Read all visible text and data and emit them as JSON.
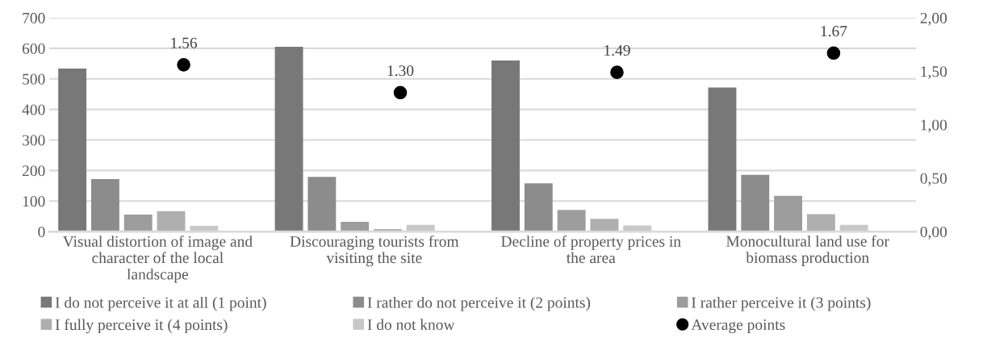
{
  "chart_data": {
    "type": "bar",
    "categories": [
      "Visual distortion of image and character of the local landscape",
      "Discouraging tourists from visiting the site",
      "Decline of property prices in the area",
      "Monocultural land use for biomass production"
    ],
    "series": [
      {
        "name": "I do not perceive it at all (1 point)",
        "color": "#787878",
        "values": [
          534,
          605,
          560,
          472
        ]
      },
      {
        "name": "I rather do not perceive it (2 points)",
        "color": "#8c8c8c",
        "values": [
          172,
          179,
          158,
          186
        ]
      },
      {
        "name": "I rather perceive it (3 points)",
        "color": "#9c9c9c",
        "values": [
          56,
          32,
          71,
          117
        ]
      },
      {
        "name": "I fully perceive it (4 points)",
        "color": "#afafaf",
        "values": [
          67,
          8,
          42,
          57
        ]
      },
      {
        "name": "I do not know",
        "color": "#c8c8c8",
        "values": [
          19,
          22,
          20,
          22
        ]
      },
      {
        "name": "Average points",
        "color": "#000000",
        "type": "scatter",
        "axis": "y2",
        "marker": "circle",
        "values": [
          1.56,
          1.3,
          1.49,
          1.67
        ],
        "value_labels": [
          "1.56",
          "1.30",
          "1.49",
          "1.67"
        ]
      }
    ],
    "ylim": [
      0,
      700
    ],
    "yticks": [
      0,
      100,
      200,
      300,
      400,
      500,
      600,
      700
    ],
    "y2lim": [
      0,
      2
    ],
    "y2ticks": [
      {
        "value": 0,
        "label": "0,00"
      },
      {
        "value": 0.5,
        "label": "0,50"
      },
      {
        "value": 1,
        "label": "1,00"
      },
      {
        "value": 1.5,
        "label": "1,50"
      },
      {
        "value": 2,
        "label": "2,00"
      }
    ],
    "grid": "y",
    "legend": "bottom"
  }
}
